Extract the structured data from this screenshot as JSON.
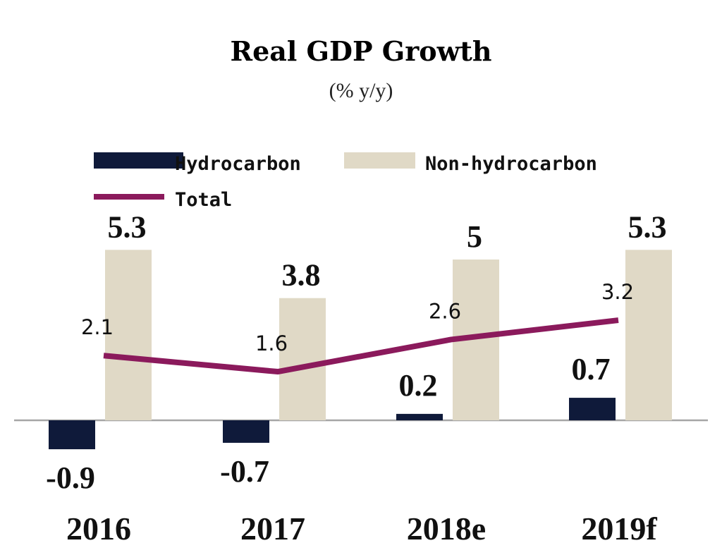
{
  "chart_data": {
    "type": "bar",
    "title": "Real GDP Growth",
    "subtitle": "(% y/y)",
    "categories": [
      "2016",
      "2017",
      "2018e",
      "2019f"
    ],
    "series": [
      {
        "name": "Hydrocarbon",
        "kind": "bar",
        "color": "#0f1a3a",
        "values": [
          -0.9,
          -0.7,
          0.2,
          0.7
        ]
      },
      {
        "name": "Non-hydrocarbon",
        "kind": "bar",
        "color": "#e0d9c6",
        "values": [
          5.3,
          3.8,
          5,
          5.3
        ]
      },
      {
        "name": "Total",
        "kind": "line",
        "color": "#8b1a5c",
        "values": [
          2.1,
          1.6,
          2.6,
          3.2
        ]
      }
    ],
    "value_labels": {
      "Hydrocarbon": [
        "-0.9",
        "-0.7",
        "0.2",
        "0.7"
      ],
      "Non-hydrocarbon": [
        "5.3",
        "3.8",
        "5",
        "5.3"
      ],
      "Total": [
        "2.1",
        "1.6",
        "2.6",
        "3.2"
      ]
    },
    "ylim": [
      -1.5,
      5.8
    ],
    "grid": false,
    "legend": "top-left",
    "xlabel": "",
    "ylabel": ""
  }
}
